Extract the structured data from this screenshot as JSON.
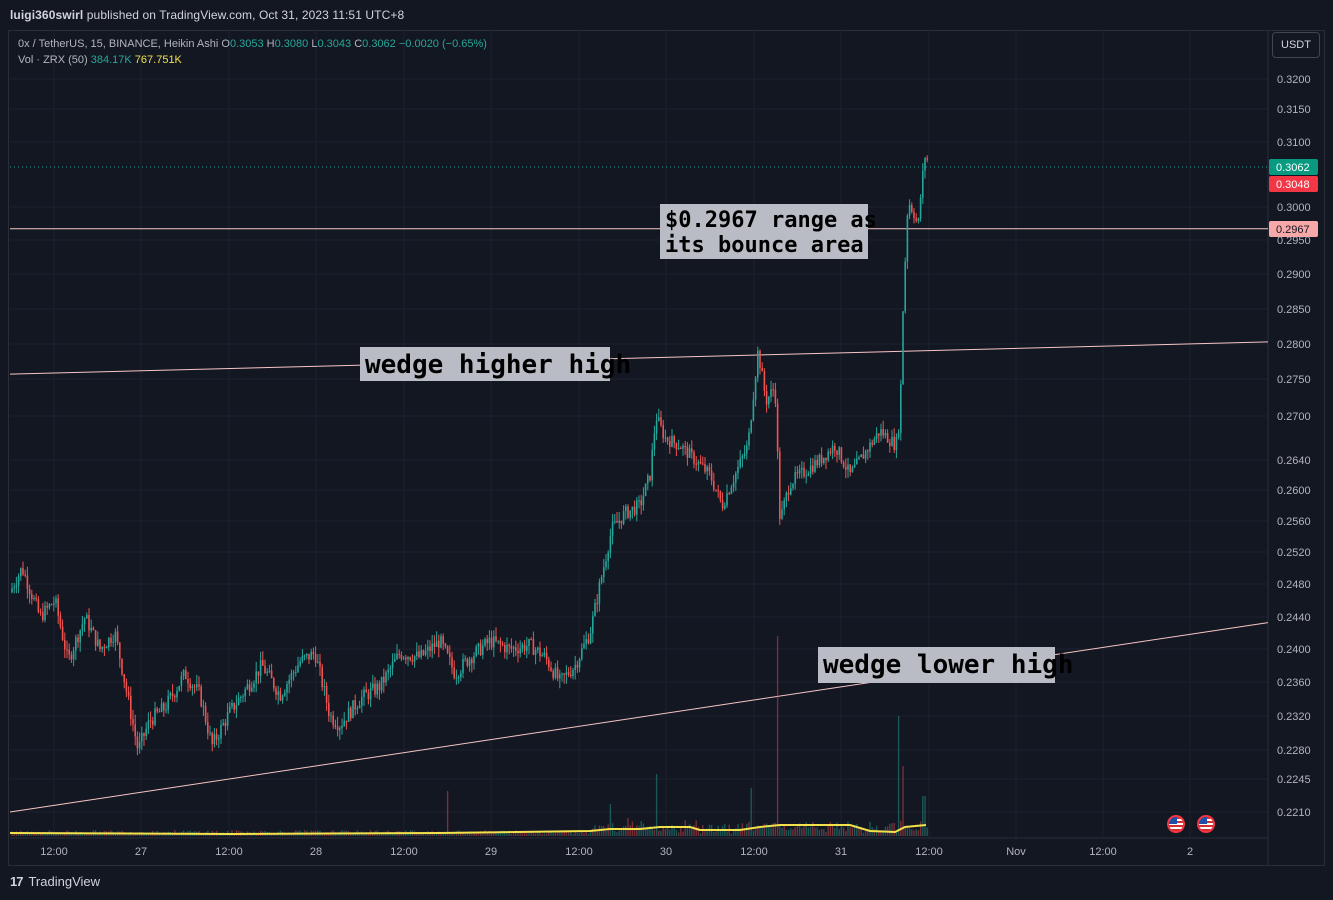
{
  "header": {
    "author": "luigi360swirl",
    "published_text": "published on TradingView.com, Oct 31, 2023 11:51 UTC+8"
  },
  "legend": {
    "symbol": "0x / TetherUS, 15, BINANCE, Heikin Ashi",
    "o_label": "O",
    "o_value": "0.3053",
    "h_label": "H",
    "h_value": "0.3080",
    "l_label": "L",
    "l_value": "0.3043",
    "c_label": "C",
    "c_value": "0.3062",
    "change": "−0.0020 (−0.65%)",
    "vol_label": "Vol · ZRX (50)",
    "vol_value": "384.17K",
    "vol_ma_value": "767.751K"
  },
  "toolbar": {
    "currency": "USDT"
  },
  "footer": {
    "brand": "TradingView"
  },
  "chart_data": {
    "type": "candlestick",
    "y_ticks": [
      "0.3200",
      "0.3150",
      "0.3100",
      "0.3000",
      "0.2950",
      "0.2900",
      "0.2850",
      "0.2800",
      "0.2750",
      "0.2700",
      "0.2640",
      "0.2600",
      "0.2560",
      "0.2520",
      "0.2480",
      "0.2440",
      "0.2400",
      "0.2360",
      "0.2320",
      "0.2280",
      "0.2245",
      "0.2210"
    ],
    "x_ticks": [
      "12:00",
      "27",
      "12:00",
      "28",
      "12:00",
      "29",
      "12:00",
      "30",
      "12:00",
      "31",
      "12:00",
      "Nov",
      "12:00",
      "2"
    ],
    "price_labels": [
      {
        "text": "0.3062",
        "color": "#089981"
      },
      {
        "text": "0.3048",
        "color": "#f23645"
      },
      {
        "text": "0.2967",
        "color": "#f7a8a8"
      }
    ],
    "horizontal_level": 0.2967,
    "annotations": [
      {
        "text": "$0.2967 range as\nits bounce area"
      },
      {
        "text": "wedge higher high"
      },
      {
        "text": "wedge lower high"
      }
    ],
    "trendlines": [
      {
        "name": "upper wedge line",
        "from": 0.2757,
        "to": 0.2803
      },
      {
        "name": "lower wedge line",
        "from": 0.221,
        "to": 0.2433
      }
    ],
    "colors": {
      "up": "#26a69a",
      "down": "#ef5350",
      "volume_ma": "#f2e14a",
      "levels": "#f7c5c5"
    }
  }
}
